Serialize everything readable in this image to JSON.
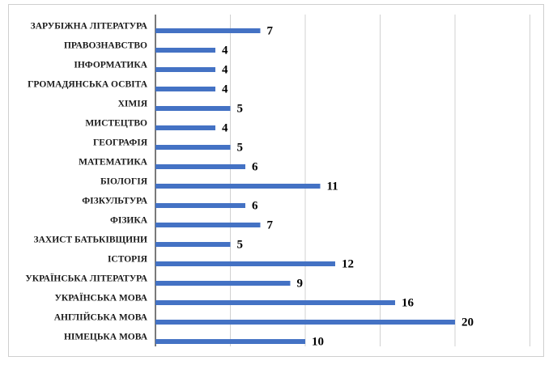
{
  "chart_data": {
    "type": "bar",
    "orientation": "horizontal",
    "categories": [
      "ЗАРУБІЖНА ЛІТЕРАТУРА",
      "ПРАВОЗНАВСТВО",
      "ІНФОРМАТИКА",
      "ГРОМАДЯНСЬКА ОСВІТА",
      "ХІМІЯ",
      "МИСТЕЦТВО",
      "ГЕОГРАФІЯ",
      "МАТЕМАТИКА",
      "БІОЛОГІЯ",
      "ФІЗКУЛЬТУРА",
      "ФІЗИКА",
      "ЗАХИСТ БАТЬКІВЩИНИ",
      "ІСТОРІЯ",
      "УКРАЇНСЬКА ЛІТЕРАТУРА",
      "УКРАЇНСЬКА МОВА",
      "АНГЛІЙСЬКА МОВА",
      "НІМЕЦЬКА МОВА"
    ],
    "values": [
      7,
      4,
      4,
      4,
      5,
      4,
      5,
      6,
      11,
      6,
      7,
      5,
      12,
      9,
      16,
      20,
      10
    ],
    "title": "",
    "xlabel": "",
    "ylabel": "",
    "xlim": [
      0,
      25
    ],
    "grid": true,
    "legend": "none",
    "bar_color": "#4472c4",
    "grid_color": "#d0d0d0",
    "axis_color": "#222222"
  }
}
